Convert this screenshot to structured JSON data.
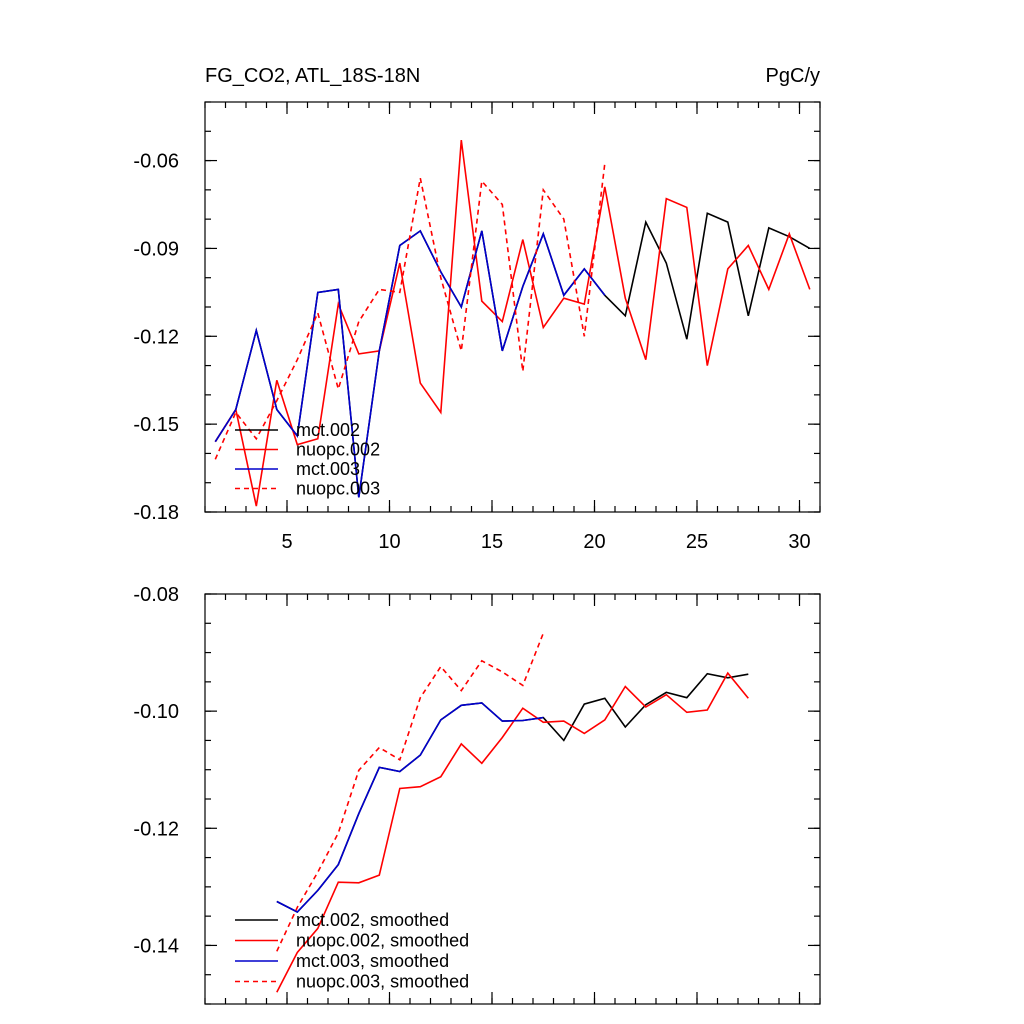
{
  "chart_data": [
    {
      "type": "line",
      "title": "FG_CO2, ATL_18S-18N",
      "units": "PgC/y",
      "xlim": [
        1,
        31
      ],
      "ylim": [
        -0.18,
        -0.04
      ],
      "x_ticks": [
        5,
        10,
        15,
        20,
        25,
        30
      ],
      "x_tick_labels": [
        "5",
        "10",
        "15",
        "20",
        "25",
        "30"
      ],
      "y_ticks": [
        -0.18,
        -0.15,
        -0.12,
        -0.09,
        -0.06
      ],
      "y_tick_labels": [
        "-0.18",
        "-0.15",
        "-0.12",
        "-0.09",
        "-0.06"
      ],
      "x_minor_step": 1,
      "y_minor_step": 0.01,
      "legend_position": "bottom-left",
      "series": [
        {
          "name": "mct.002",
          "color": "#000000",
          "dash": "solid",
          "x": [
            1.5,
            2.5,
            3.5,
            4.5,
            5.5,
            6.5,
            7.5,
            8.5,
            9.5,
            10.5,
            11.5,
            12.5,
            13.5,
            14.5,
            15.5,
            16.5,
            17.5,
            18.5,
            19.5,
            20.5,
            21.5,
            22.5,
            23.5,
            24.5,
            25.5,
            26.5,
            27.5,
            28.5,
            29.5,
            30.5
          ],
          "values": [
            -0.156,
            -0.145,
            -0.118,
            -0.145,
            -0.154,
            -0.105,
            -0.104,
            -0.175,
            -0.125,
            -0.089,
            -0.084,
            -0.098,
            -0.11,
            -0.084,
            -0.125,
            -0.103,
            -0.085,
            -0.106,
            -0.097,
            -0.106,
            -0.113,
            -0.081,
            -0.095,
            -0.121,
            -0.078,
            -0.081,
            -0.113,
            -0.083,
            -0.086,
            -0.09
          ]
        },
        {
          "name": "nuopc.002",
          "color": "#ff0000",
          "dash": "solid",
          "x": [
            1.5,
            2.5,
            3.5,
            4.5,
            5.5,
            6.5,
            7.5,
            8.5,
            9.5,
            10.5,
            11.5,
            12.5,
            13.5,
            14.5,
            15.5,
            16.5,
            17.5,
            18.5,
            19.5,
            20.5,
            21.5,
            22.5,
            23.5,
            24.5,
            25.5,
            26.5,
            27.5,
            28.5,
            29.5,
            30.5
          ],
          "values": [
            -0.156,
            -0.145,
            -0.178,
            -0.135,
            -0.157,
            -0.155,
            -0.109,
            -0.126,
            -0.125,
            -0.095,
            -0.136,
            -0.146,
            -0.053,
            -0.108,
            -0.115,
            -0.087,
            -0.117,
            -0.107,
            -0.109,
            -0.069,
            -0.107,
            -0.128,
            -0.073,
            -0.076,
            -0.13,
            -0.097,
            -0.089,
            -0.104,
            -0.085,
            -0.104
          ]
        },
        {
          "name": "mct.003",
          "color": "#0000cc",
          "dash": "solid",
          "x": [
            1.5,
            2.5,
            3.5,
            4.5,
            5.5,
            6.5,
            7.5,
            8.5,
            9.5,
            10.5,
            11.5,
            12.5,
            13.5,
            14.5,
            15.5,
            16.5,
            17.5,
            18.5,
            19.5,
            20.5
          ],
          "values": [
            -0.156,
            -0.145,
            -0.118,
            -0.145,
            -0.154,
            -0.105,
            -0.104,
            -0.175,
            -0.125,
            -0.089,
            -0.084,
            -0.098,
            -0.11,
            -0.084,
            -0.125,
            -0.103,
            -0.085,
            -0.106,
            -0.097,
            -0.106
          ]
        },
        {
          "name": "nuopc.003",
          "color": "#ff0000",
          "dash": "dashed",
          "x": [
            1.5,
            2.5,
            3.5,
            4.5,
            5.5,
            6.5,
            7.5,
            8.5,
            9.5,
            10.5,
            11.5,
            12.5,
            13.5,
            14.5,
            15.5,
            16.5,
            17.5,
            18.5,
            19.5,
            20.5
          ],
          "values": [
            -0.162,
            -0.146,
            -0.155,
            -0.142,
            -0.128,
            -0.112,
            -0.138,
            -0.115,
            -0.104,
            -0.105,
            -0.066,
            -0.1,
            -0.125,
            -0.067,
            -0.075,
            -0.132,
            -0.07,
            -0.08,
            -0.12,
            -0.061
          ]
        }
      ]
    },
    {
      "type": "line",
      "title": "",
      "units": "",
      "xlim": [
        1,
        31
      ],
      "ylim": [
        -0.15,
        -0.08
      ],
      "x_ticks": [
        5,
        10,
        15,
        20,
        25,
        30
      ],
      "x_tick_labels": [],
      "y_ticks": [
        -0.14,
        -0.12,
        -0.1,
        -0.08
      ],
      "y_tick_labels": [
        "-0.14",
        "-0.12",
        "-0.10",
        "-0.08"
      ],
      "x_minor_step": 1,
      "y_minor_step": 0.005,
      "legend_position": "bottom-left",
      "series": [
        {
          "name": "mct.002, smoothed",
          "color": "#000000",
          "dash": "solid",
          "x": [
            4.5,
            5.5,
            6.5,
            7.5,
            8.5,
            9.5,
            10.5,
            11.5,
            12.5,
            13.5,
            14.5,
            15.5,
            16.5,
            17.5,
            18.5,
            19.5,
            20.5,
            21.5,
            22.5,
            23.5,
            24.5,
            25.5,
            26.5,
            27.5
          ],
          "values": [
            -0.1325,
            -0.1343,
            -0.1306,
            -0.1262,
            -0.1175,
            -0.1096,
            -0.1103,
            -0.1075,
            -0.1015,
            -0.099,
            -0.0986,
            -0.1017,
            -0.1016,
            -0.1011,
            -0.105,
            -0.0988,
            -0.0978,
            -0.1027,
            -0.0989,
            -0.0968,
            -0.0977,
            -0.0936,
            -0.0943,
            -0.0937
          ]
        },
        {
          "name": "nuopc.002, smoothed",
          "color": "#ff0000",
          "dash": "solid",
          "x": [
            4.5,
            5.5,
            6.5,
            7.5,
            8.5,
            9.5,
            10.5,
            11.5,
            12.5,
            13.5,
            14.5,
            15.5,
            16.5,
            17.5,
            18.5,
            19.5,
            20.5,
            21.5,
            22.5,
            23.5,
            24.5,
            25.5,
            26.5,
            27.5
          ],
          "values": [
            -0.148,
            -0.1412,
            -0.1371,
            -0.1292,
            -0.1293,
            -0.128,
            -0.1132,
            -0.1129,
            -0.1112,
            -0.1056,
            -0.1089,
            -0.1045,
            -0.0995,
            -0.1019,
            -0.1017,
            -0.1038,
            -0.1015,
            -0.0958,
            -0.0993,
            -0.0972,
            -0.1002,
            -0.0998,
            -0.0935,
            -0.0978
          ]
        },
        {
          "name": "mct.003, smoothed",
          "color": "#0000cc",
          "dash": "solid",
          "x": [
            4.5,
            5.5,
            6.5,
            7.5,
            8.5,
            9.5,
            10.5,
            11.5,
            12.5,
            13.5,
            14.5,
            15.5,
            16.5,
            17.5
          ],
          "values": [
            -0.1325,
            -0.1343,
            -0.1306,
            -0.1262,
            -0.1175,
            -0.1096,
            -0.1103,
            -0.1075,
            -0.1015,
            -0.099,
            -0.0986,
            -0.1017,
            -0.1016,
            -0.1011
          ]
        },
        {
          "name": "nuopc.003, smoothed",
          "color": "#ff0000",
          "dash": "dashed",
          "x": [
            4.5,
            5.5,
            6.5,
            7.5,
            8.5,
            9.5,
            10.5,
            11.5,
            12.5,
            13.5,
            14.5,
            15.5,
            16.5,
            17.5
          ],
          "values": [
            -0.141,
            -0.1335,
            -0.1275,
            -0.1208,
            -0.1101,
            -0.1062,
            -0.1083,
            -0.0977,
            -0.0924,
            -0.0965,
            -0.0914,
            -0.0933,
            -0.0956,
            -0.0867
          ]
        }
      ]
    }
  ]
}
